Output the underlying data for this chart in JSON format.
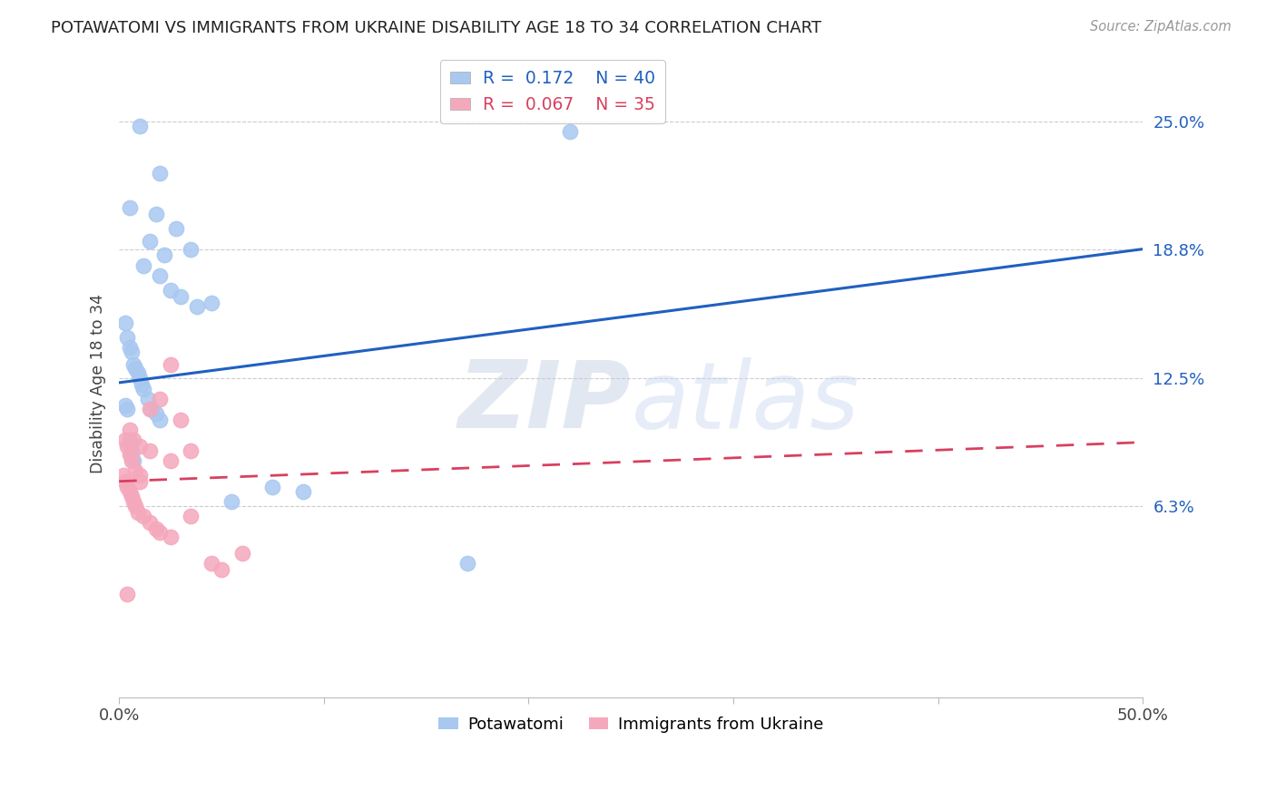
{
  "title": "POTAWATOMI VS IMMIGRANTS FROM UKRAINE DISABILITY AGE 18 TO 34 CORRELATION CHART",
  "source": "Source: ZipAtlas.com",
  "ylabel": "Disability Age 18 to 34",
  "ytick_labels": [
    "6.3%",
    "12.5%",
    "18.8%",
    "25.0%"
  ],
  "ytick_values": [
    6.3,
    12.5,
    18.8,
    25.0
  ],
  "xlim": [
    0.0,
    50.0
  ],
  "ylim": [
    -3.0,
    27.5
  ],
  "blue_R": "0.172",
  "blue_N": "40",
  "pink_R": "0.067",
  "pink_N": "35",
  "blue_color": "#A8C8F0",
  "pink_color": "#F5A8BC",
  "blue_line_color": "#2060C0",
  "pink_line_color": "#D84060",
  "watermark_color": "#C8D8F0",
  "blue_line_y0": 12.3,
  "blue_line_y1": 18.8,
  "pink_line_y0": 7.5,
  "pink_line_y1": 9.4,
  "blue_x": [
    1.0,
    2.0,
    1.8,
    2.8,
    0.5,
    1.5,
    2.2,
    3.5,
    1.2,
    2.0,
    2.5,
    3.0,
    3.8,
    4.5,
    0.3,
    0.4,
    0.5,
    0.6,
    0.7,
    0.8,
    0.9,
    1.0,
    1.1,
    1.2,
    1.4,
    1.6,
    1.8,
    2.0,
    0.3,
    0.4,
    0.5,
    0.5,
    0.6,
    0.6,
    0.7,
    22.0,
    9.0,
    5.5,
    7.5,
    17.0
  ],
  "blue_y": [
    24.8,
    22.5,
    20.5,
    19.8,
    20.8,
    19.2,
    18.5,
    18.8,
    18.0,
    17.5,
    16.8,
    16.5,
    16.0,
    16.2,
    15.2,
    14.5,
    14.0,
    13.8,
    13.2,
    13.0,
    12.8,
    12.5,
    12.2,
    12.0,
    11.5,
    11.0,
    10.8,
    10.5,
    11.2,
    11.0,
    9.5,
    9.2,
    9.0,
    8.8,
    8.5,
    24.5,
    7.0,
    6.5,
    7.2,
    3.5
  ],
  "pink_x": [
    0.2,
    0.3,
    0.4,
    0.5,
    0.6,
    0.7,
    0.8,
    0.9,
    1.0,
    1.2,
    1.5,
    1.8,
    2.0,
    2.5,
    0.3,
    0.4,
    0.5,
    0.6,
    0.8,
    1.0,
    1.5,
    2.0,
    2.5,
    3.0,
    3.5,
    0.5,
    0.7,
    1.0,
    1.5,
    2.5,
    3.5,
    4.5,
    6.0,
    5.0,
    0.4
  ],
  "pink_y": [
    7.8,
    7.5,
    7.2,
    7.0,
    6.8,
    6.5,
    6.3,
    6.0,
    7.5,
    5.8,
    5.5,
    5.2,
    5.0,
    4.8,
    9.5,
    9.2,
    8.8,
    8.5,
    8.0,
    7.8,
    11.0,
    11.5,
    13.2,
    10.5,
    9.0,
    10.0,
    9.5,
    9.2,
    9.0,
    8.5,
    5.8,
    3.5,
    4.0,
    3.2,
    2.0
  ]
}
